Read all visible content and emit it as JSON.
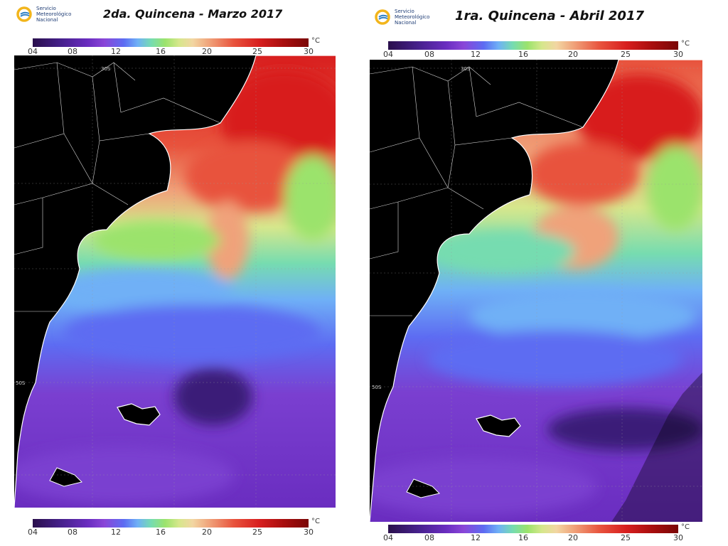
{
  "panels": [
    {
      "id": "left",
      "title": "2da. Quincena - Marzo 2017",
      "logo": {
        "icon": "smn-logo-icon",
        "line1": "Servicio",
        "line2": "Meteorológico",
        "line3": "Nacional"
      },
      "colorbar": {
        "ticks": [
          "04",
          "08",
          "12",
          "16",
          "20",
          "25",
          "30"
        ],
        "unit": "°C"
      },
      "lat_labels": [
        "30S",
        "50S"
      ]
    },
    {
      "id": "right",
      "title": "1ra. Quincena - Abril 2017",
      "logo": {
        "icon": "smn-logo-icon",
        "line1": "Servicio",
        "line2": "Meteorológico",
        "line3": "Nacional"
      },
      "colorbar": {
        "ticks": [
          "04",
          "08",
          "12",
          "16",
          "20",
          "25",
          "30"
        ],
        "unit": "°C"
      },
      "lat_labels": [
        "30S",
        "50S"
      ]
    }
  ],
  "colors": {
    "land": "#000000",
    "cold": "#6a2dc0",
    "cool": "#5d6cf2",
    "mild": "#76dcb0",
    "warm": "#f0a27a",
    "hot": "#d81f1f"
  }
}
